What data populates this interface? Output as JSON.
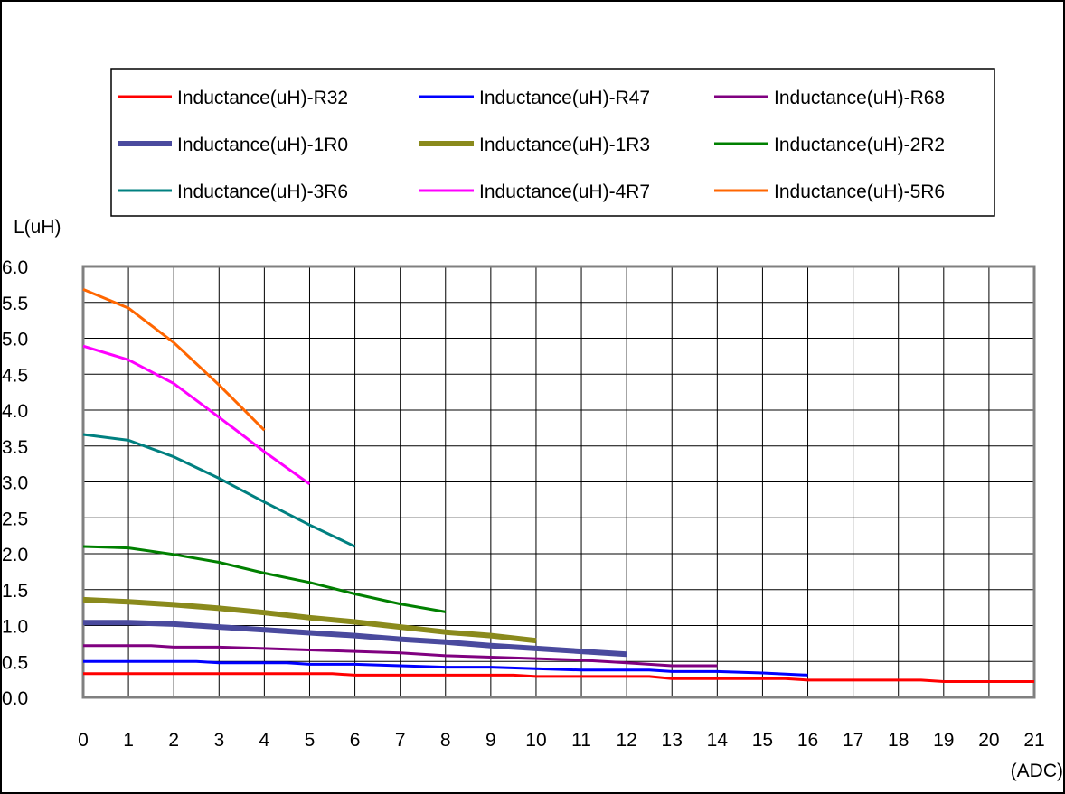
{
  "chart_data": {
    "type": "line",
    "ylabel": "L(uH)",
    "xlabel": "(ADC)",
    "xlim": [
      0,
      21
    ],
    "ylim": [
      0,
      6.0
    ],
    "x_ticks": [
      0,
      1,
      2,
      3,
      4,
      5,
      6,
      7,
      8,
      9,
      10,
      11,
      12,
      13,
      14,
      15,
      16,
      17,
      18,
      19,
      20,
      21
    ],
    "y_ticks": [
      "0.0",
      "0.5",
      "1.0",
      "1.5",
      "2.0",
      "2.5",
      "3.0",
      "3.5",
      "4.0",
      "4.5",
      "5.0",
      "5.5",
      "6.0"
    ],
    "grid": true,
    "legend_position": "top",
    "series": [
      {
        "name": "Inductance(uH)-R32",
        "color": "#ff0000",
        "width": 3,
        "x": [
          0,
          1,
          2,
          3,
          4,
          5,
          5.5,
          6,
          7,
          8,
          9,
          9.5,
          10,
          11,
          12,
          12.5,
          13,
          14,
          15,
          15.5,
          16,
          17,
          18,
          18.5,
          19,
          20,
          21
        ],
        "y": [
          0.33,
          0.33,
          0.33,
          0.33,
          0.33,
          0.33,
          0.33,
          0.31,
          0.31,
          0.31,
          0.31,
          0.31,
          0.29,
          0.29,
          0.29,
          0.29,
          0.26,
          0.26,
          0.26,
          0.26,
          0.24,
          0.24,
          0.24,
          0.24,
          0.22,
          0.22,
          0.22
        ]
      },
      {
        "name": "Inductance(uH)-R47",
        "color": "#0000ff",
        "width": 3,
        "x": [
          0,
          1,
          2,
          2.5,
          3,
          4,
          4.5,
          5,
          6,
          7,
          8,
          9,
          10,
          11,
          12,
          12.5,
          13,
          14,
          15,
          16
        ],
        "y": [
          0.5,
          0.5,
          0.5,
          0.5,
          0.48,
          0.48,
          0.48,
          0.46,
          0.46,
          0.44,
          0.42,
          0.42,
          0.4,
          0.38,
          0.38,
          0.38,
          0.36,
          0.36,
          0.34,
          0.31
        ]
      },
      {
        "name": "Inductance(uH)-R68",
        "color": "#800080",
        "width": 3,
        "x": [
          0,
          1,
          1.5,
          2,
          3,
          4,
          5,
          6,
          7,
          8,
          9,
          10,
          11,
          12,
          13,
          14
        ],
        "y": [
          0.72,
          0.72,
          0.72,
          0.7,
          0.7,
          0.68,
          0.66,
          0.64,
          0.62,
          0.58,
          0.56,
          0.54,
          0.52,
          0.48,
          0.44,
          0.44
        ]
      },
      {
        "name": "Inductance(uH)-1R0",
        "color": "#4a4a9e",
        "width": 6,
        "x": [
          0,
          1,
          2,
          3,
          4,
          5,
          6,
          7,
          8,
          9,
          10,
          11,
          12
        ],
        "y": [
          1.04,
          1.04,
          1.02,
          0.98,
          0.94,
          0.9,
          0.86,
          0.81,
          0.77,
          0.72,
          0.68,
          0.64,
          0.6
        ]
      },
      {
        "name": "Inductance(uH)-1R3",
        "color": "#8a8a1c",
        "width": 6,
        "x": [
          0,
          1,
          2,
          3,
          4,
          5,
          6,
          7,
          8,
          9,
          10
        ],
        "y": [
          1.36,
          1.33,
          1.29,
          1.24,
          1.18,
          1.11,
          1.05,
          0.98,
          0.91,
          0.86,
          0.79
        ]
      },
      {
        "name": "Inductance(uH)-2R2",
        "color": "#008000",
        "width": 3,
        "x": [
          0,
          1,
          2,
          3,
          4,
          5,
          6,
          7,
          8
        ],
        "y": [
          2.1,
          2.08,
          1.99,
          1.88,
          1.73,
          1.6,
          1.44,
          1.3,
          1.19
        ]
      },
      {
        "name": "Inductance(uH)-3R6",
        "color": "#008080",
        "width": 3,
        "x": [
          0,
          1,
          2,
          3,
          4,
          5,
          6
        ],
        "y": [
          3.66,
          3.58,
          3.35,
          3.05,
          2.72,
          2.4,
          2.1
        ]
      },
      {
        "name": "Inductance(uH)-4R7",
        "color": "#ff00ff",
        "width": 3,
        "x": [
          0,
          1,
          2,
          3,
          4,
          5
        ],
        "y": [
          4.89,
          4.7,
          4.37,
          3.9,
          3.42,
          2.97
        ]
      },
      {
        "name": "Inductance(uH)-5R6",
        "color": "#ff6600",
        "width": 3,
        "x": [
          0,
          1,
          2,
          3,
          4
        ],
        "y": [
          5.68,
          5.42,
          4.94,
          4.35,
          3.72
        ]
      }
    ]
  }
}
